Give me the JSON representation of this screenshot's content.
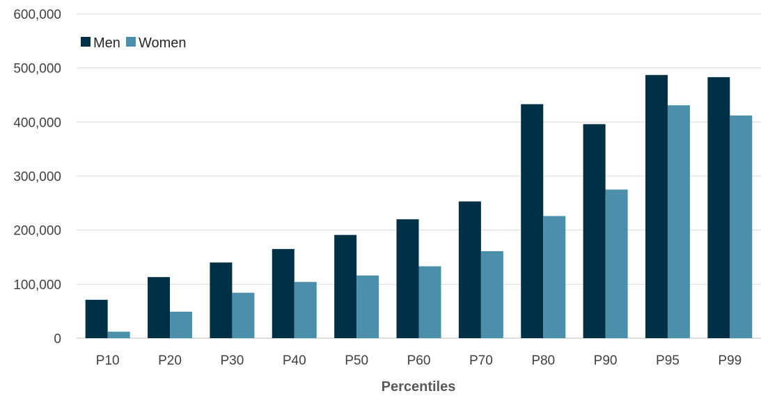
{
  "chart_data": {
    "type": "bar",
    "title": "",
    "xlabel": "Percentiles",
    "ylabel": "",
    "ylim": [
      0,
      600000
    ],
    "y_ticks": [
      "0",
      "100,000",
      "200,000",
      "300,000",
      "400,000",
      "500,000",
      "600,000"
    ],
    "y_tick_values": [
      0,
      100000,
      200000,
      300000,
      400000,
      500000,
      600000
    ],
    "categories": [
      "P10",
      "P20",
      "P30",
      "P40",
      "P50",
      "P60",
      "P70",
      "P80",
      "P90",
      "P95",
      "P99"
    ],
    "series": [
      {
        "name": "Men",
        "color": "#003045",
        "values": [
          71000,
          113000,
          140000,
          165000,
          191000,
          220000,
          253000,
          433000,
          396000,
          487000,
          483000
        ]
      },
      {
        "name": "Women",
        "color": "#4b8fab",
        "values": [
          12000,
          49000,
          84000,
          104000,
          116000,
          133000,
          161000,
          226000,
          275000,
          431000,
          412000
        ]
      }
    ],
    "grid": true,
    "legend_position": "top-left"
  }
}
